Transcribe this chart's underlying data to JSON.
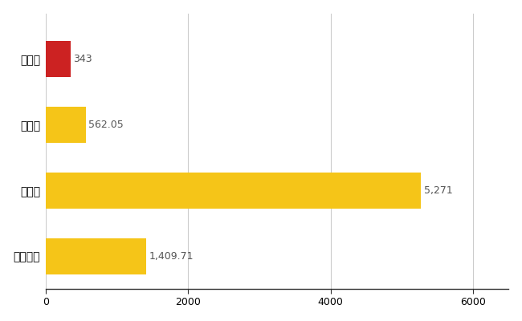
{
  "categories": [
    "斑鳩町",
    "県平均",
    "県最大",
    "全国平均"
  ],
  "values": [
    343,
    562.05,
    5271,
    1409.71
  ],
  "bar_colors": [
    "#cc2222",
    "#f5c518",
    "#f5c518",
    "#f5c518"
  ],
  "value_labels": [
    "343",
    "562.05",
    "5,271",
    "1,409.71"
  ],
  "xlim": [
    0,
    6500
  ],
  "xticks": [
    0,
    2000,
    4000,
    6000
  ],
  "background_color": "#ffffff",
  "grid_color": "#cccccc",
  "label_fontsize": 10,
  "tick_fontsize": 9,
  "value_fontsize": 9
}
